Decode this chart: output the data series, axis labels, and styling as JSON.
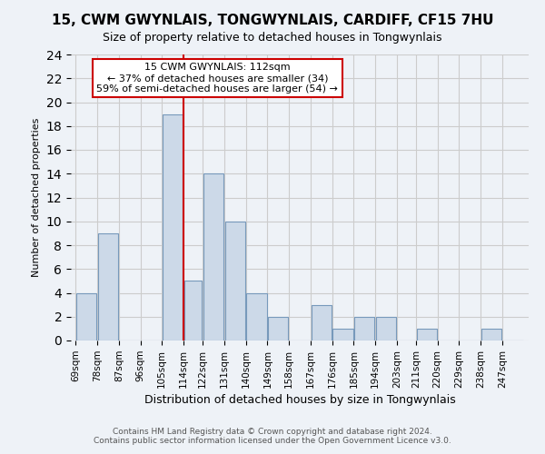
{
  "title": "15, CWM GWYNLAIS, TONGWYNLAIS, CARDIFF, CF15 7HU",
  "subtitle": "Size of property relative to detached houses in Tongwynlais",
  "xlabel": "Distribution of detached houses by size in Tongwynlais",
  "ylabel": "Number of detached properties",
  "bin_labels": [
    "69sqm",
    "78sqm",
    "87sqm",
    "96sqm",
    "105sqm",
    "114sqm",
    "122sqm",
    "131sqm",
    "140sqm",
    "149sqm",
    "158sqm",
    "167sqm",
    "176sqm",
    "185sqm",
    "194sqm",
    "203sqm",
    "211sqm",
    "220sqm",
    "229sqm",
    "238sqm",
    "247sqm"
  ],
  "bin_edges": [
    69,
    78,
    87,
    96,
    105,
    114,
    122,
    131,
    140,
    149,
    158,
    167,
    176,
    185,
    194,
    203,
    211,
    220,
    229,
    238,
    247,
    256
  ],
  "counts": [
    4,
    9,
    0,
    0,
    19,
    5,
    14,
    10,
    4,
    2,
    0,
    3,
    1,
    2,
    2,
    0,
    1,
    0,
    0,
    1,
    0
  ],
  "bar_color": "#ccd9e8",
  "bar_edge_color": "#7799bb",
  "red_line_x": 114,
  "annotation_title": "15 CWM GWYNLAIS: 112sqm",
  "annotation_line1": "← 37% of detached houses are smaller (34)",
  "annotation_line2": "59% of semi-detached houses are larger (54) →",
  "annotation_box_color": "#ffffff",
  "annotation_box_edge": "#cc0000",
  "red_line_color": "#cc0000",
  "ylim": [
    0,
    24
  ],
  "yticks": [
    0,
    2,
    4,
    6,
    8,
    10,
    12,
    14,
    16,
    18,
    20,
    22,
    24
  ],
  "footer_line1": "Contains HM Land Registry data © Crown copyright and database right 2024.",
  "footer_line2": "Contains public sector information licensed under the Open Government Licence v3.0.",
  "bg_color": "#eef2f7",
  "plot_bg_color": "#eef2f7",
  "title_fontsize": 11,
  "subtitle_fontsize": 9,
  "ylabel_fontsize": 8,
  "xlabel_fontsize": 9
}
